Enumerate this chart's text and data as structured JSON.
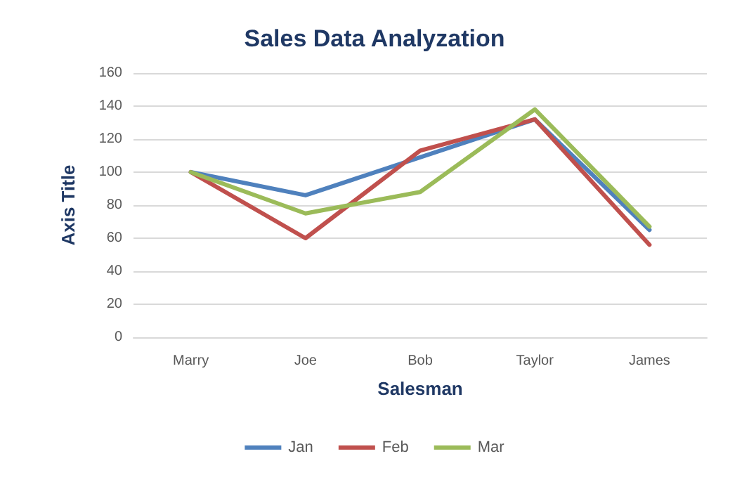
{
  "chart_data": {
    "type": "line",
    "title": "Sales Data Analyzation",
    "xlabel": "Salesman",
    "ylabel": "Axis Title",
    "categories": [
      "Marry",
      "Joe",
      "Bob",
      "Taylor",
      "James"
    ],
    "series": [
      {
        "name": "Jan",
        "color": "#4f81bd",
        "values": [
          100,
          86,
          109,
          132,
          65
        ]
      },
      {
        "name": "Feb",
        "color": "#c0504d",
        "values": [
          100,
          60,
          113,
          132,
          56
        ]
      },
      {
        "name": "Mar",
        "color": "#9bbb59",
        "values": [
          100,
          75,
          88,
          138,
          67
        ]
      }
    ],
    "ylim": [
      0,
      160
    ],
    "yticks": [
      0,
      20,
      40,
      60,
      80,
      100,
      120,
      140,
      160
    ],
    "grid": "y",
    "legend": "bottom",
    "marker": "none",
    "line_style": "solid"
  }
}
